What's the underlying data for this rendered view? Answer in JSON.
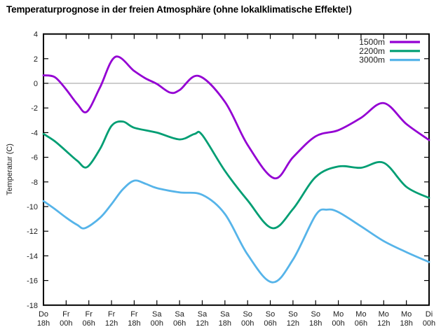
{
  "title": "Temperaturprognose in der freien Atmosphäre (ohne lokalklimatische Effekte!)",
  "colors": {
    "background": "#ffffff",
    "border": "#000000",
    "zero_line": "#9b9b9b",
    "tick_text": "#1c1c1c",
    "series_1500m": "#9400d3",
    "series_2200m": "#009e73",
    "series_3000m": "#56b4e9"
  },
  "chart_data": {
    "type": "line",
    "title": "Temperaturprognose in der freien Atmosphäre (ohne lokalklimatische Effekte!)",
    "xlabel": "",
    "ylabel": "Temperatur (C)",
    "ylim": [
      -18,
      4
    ],
    "ytick_step": 2,
    "y_tick_labels": [
      "4",
      "2",
      "0",
      "-2",
      "-4",
      "-6",
      "-8",
      "-10",
      "-12",
      "-14",
      "-16",
      "-18"
    ],
    "grid": "horizontal zero-axis line only",
    "legend_position": "inside top-right, no box",
    "x_hours_span": 102,
    "x_tick_every_hours": 6,
    "categories": [
      {
        "day": "Do",
        "hour": "18h"
      },
      {
        "day": "Fr",
        "hour": "00h"
      },
      {
        "day": "Fr",
        "hour": "06h"
      },
      {
        "day": "Fr",
        "hour": "12h"
      },
      {
        "day": "Fr",
        "hour": "18h"
      },
      {
        "day": "Sa",
        "hour": "00h"
      },
      {
        "day": "Sa",
        "hour": "06h"
      },
      {
        "day": "Sa",
        "hour": "12h"
      },
      {
        "day": "Sa",
        "hour": "18h"
      },
      {
        "day": "So",
        "hour": "00h"
      },
      {
        "day": "So",
        "hour": "06h"
      },
      {
        "day": "So",
        "hour": "12h"
      },
      {
        "day": "So",
        "hour": "18h"
      },
      {
        "day": "Mo",
        "hour": "00h"
      },
      {
        "day": "Mo",
        "hour": "06h"
      },
      {
        "day": "Mo",
        "hour": "12h"
      },
      {
        "day": "Mo",
        "hour": "18h"
      },
      {
        "day": "Di",
        "hour": "00h"
      }
    ],
    "series": [
      {
        "name": "1500m",
        "color": "#9400d3",
        "points": [
          [
            0,
            0.65
          ],
          [
            3,
            0.5
          ],
          [
            6,
            -0.5
          ],
          [
            9,
            -1.7
          ],
          [
            11.5,
            -2.3
          ],
          [
            15,
            -0.3
          ],
          [
            19,
            2.15
          ],
          [
            24,
            1.0
          ],
          [
            27,
            0.4
          ],
          [
            30,
            -0.05
          ],
          [
            33.5,
            -0.75
          ],
          [
            36,
            -0.55
          ],
          [
            41,
            0.6
          ],
          [
            48,
            -1.5
          ],
          [
            54,
            -5.0
          ],
          [
            61,
            -7.7
          ],
          [
            66,
            -6.0
          ],
          [
            72,
            -4.3
          ],
          [
            78,
            -3.8
          ],
          [
            84,
            -2.8
          ],
          [
            90,
            -1.6
          ],
          [
            96,
            -3.3
          ],
          [
            102,
            -4.6
          ]
        ]
      },
      {
        "name": "2200m",
        "color": "#009e73",
        "points": [
          [
            0,
            -4.1
          ],
          [
            3,
            -4.7
          ],
          [
            6,
            -5.5
          ],
          [
            9,
            -6.3
          ],
          [
            11.5,
            -6.8
          ],
          [
            15,
            -5.3
          ],
          [
            18,
            -3.45
          ],
          [
            21,
            -3.1
          ],
          [
            24,
            -3.6
          ],
          [
            30,
            -4.0
          ],
          [
            36,
            -4.55
          ],
          [
            40,
            -4.1
          ],
          [
            42,
            -4.2
          ],
          [
            48,
            -7.1
          ],
          [
            54,
            -9.5
          ],
          [
            60.5,
            -11.75
          ],
          [
            66,
            -10.2
          ],
          [
            72,
            -7.6
          ],
          [
            78,
            -6.75
          ],
          [
            84,
            -6.85
          ],
          [
            90,
            -6.45
          ],
          [
            96,
            -8.4
          ],
          [
            102,
            -9.3
          ]
        ]
      },
      {
        "name": "3000m",
        "color": "#56b4e9",
        "points": [
          [
            0,
            -9.55
          ],
          [
            3,
            -10.2
          ],
          [
            6,
            -10.9
          ],
          [
            9,
            -11.5
          ],
          [
            11,
            -11.75
          ],
          [
            15,
            -10.9
          ],
          [
            18,
            -9.8
          ],
          [
            21,
            -8.6
          ],
          [
            24,
            -7.9
          ],
          [
            27,
            -8.15
          ],
          [
            30,
            -8.5
          ],
          [
            36,
            -8.85
          ],
          [
            42,
            -9.05
          ],
          [
            48,
            -10.6
          ],
          [
            54,
            -13.9
          ],
          [
            60.5,
            -16.15
          ],
          [
            66,
            -14.3
          ],
          [
            72,
            -10.7
          ],
          [
            75,
            -10.25
          ],
          [
            78,
            -10.45
          ],
          [
            84,
            -11.6
          ],
          [
            90,
            -12.8
          ],
          [
            96,
            -13.7
          ],
          [
            102,
            -14.5
          ]
        ]
      }
    ]
  }
}
